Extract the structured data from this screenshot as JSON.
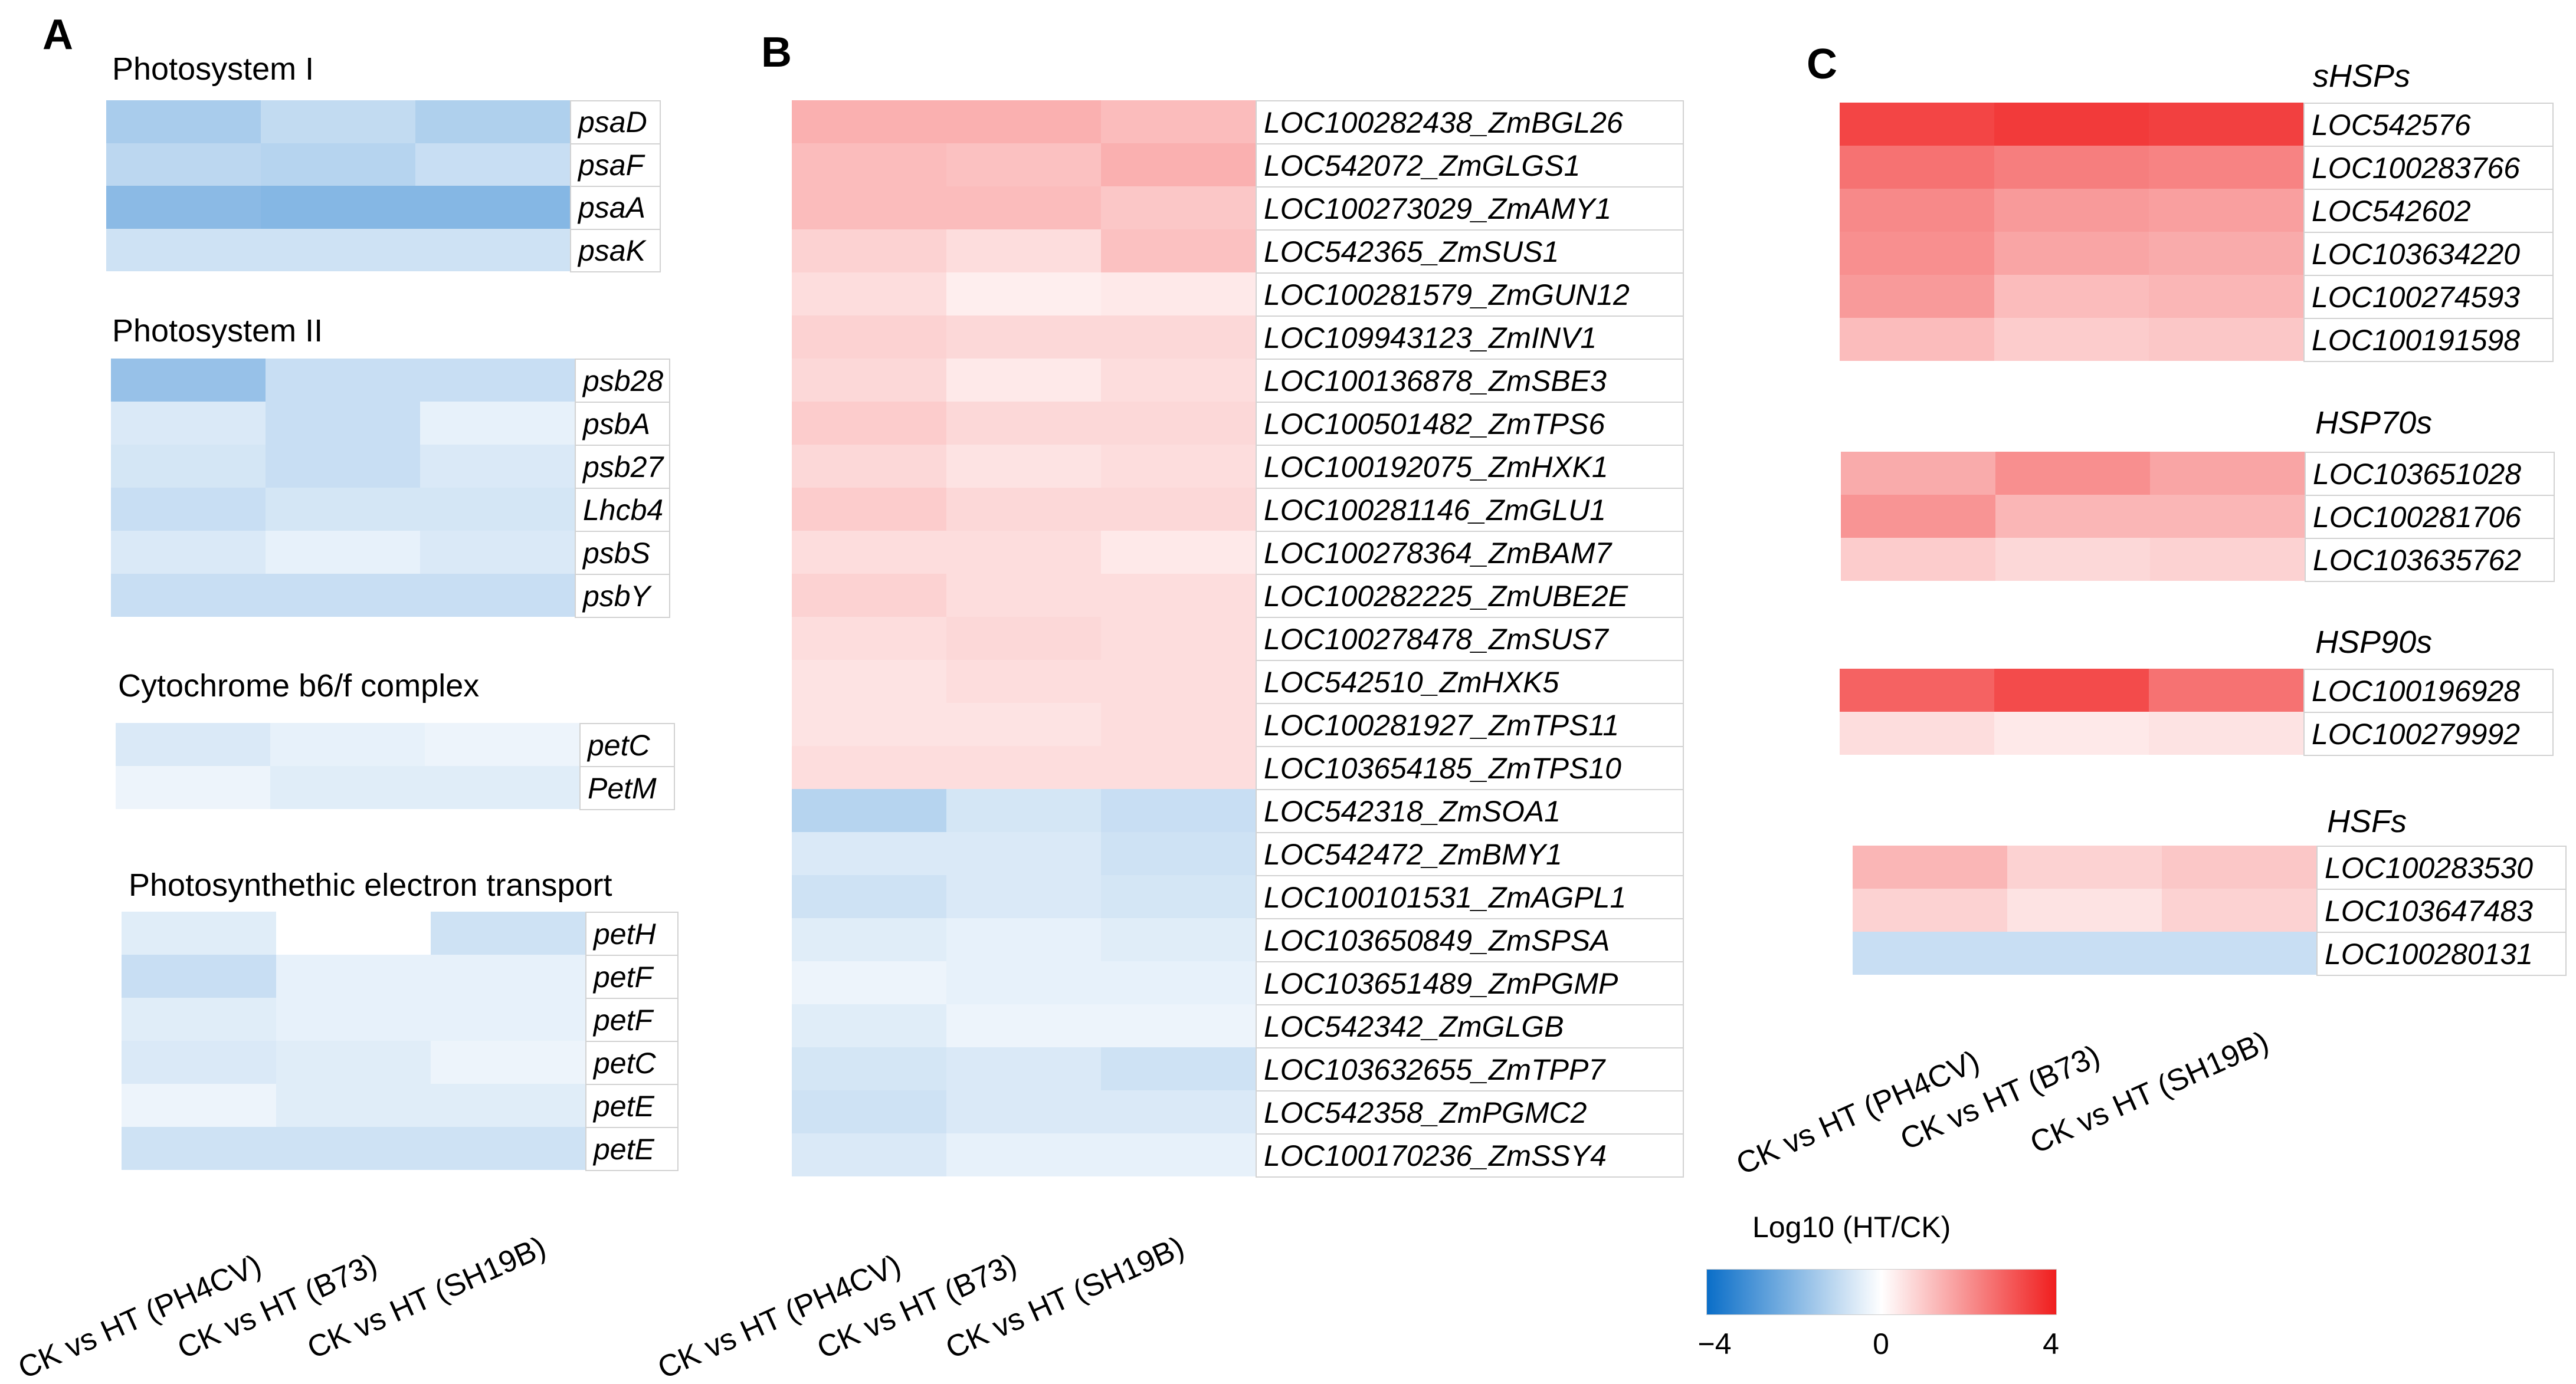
{
  "panel_labels": [
    "A",
    "B",
    "C"
  ],
  "chart_data": [
    {
      "type": "heatmap",
      "panel": "A",
      "value_scale": "Log10 (HT/CK)",
      "columns": [
        "CK vs HT (PH4CV)",
        "CK vs HT (B73)",
        "CK vs HT (SH19B)"
      ],
      "groups": [
        {
          "title": "Photosystem I",
          "genes": [
            "psaD",
            "psaF",
            "psaA",
            "psaK"
          ],
          "values": [
            [
              -1.4,
              -1.0,
              -1.3
            ],
            [
              -1.1,
              -1.2,
              -0.9
            ],
            [
              -1.9,
              -2.0,
              -2.0
            ],
            [
              -0.8,
              -0.8,
              -0.8
            ]
          ]
        },
        {
          "title": "Photosystem II",
          "genes": [
            "psb28",
            "psbA",
            "psb27",
            "Lhcb4",
            "psbS",
            "psbY"
          ],
          "values": [
            [
              -1.7,
              -0.9,
              -0.9
            ],
            [
              -0.6,
              -0.9,
              -0.4
            ],
            [
              -0.7,
              -0.9,
              -0.6
            ],
            [
              -0.9,
              -0.7,
              -0.7
            ],
            [
              -0.6,
              -0.4,
              -0.6
            ],
            [
              -0.9,
              -0.9,
              -0.9
            ]
          ]
        },
        {
          "title": "Cytochrome b6/f complex",
          "genes": [
            "petC",
            "PetM"
          ],
          "values": [
            [
              -0.6,
              -0.4,
              -0.3
            ],
            [
              -0.3,
              -0.5,
              -0.5
            ]
          ]
        },
        {
          "title": "Photosynthethic electron transport",
          "genes": [
            "petH",
            "petF",
            "petF",
            "petC",
            "petE",
            "petE"
          ],
          "values": [
            [
              -0.5,
              0.0,
              -0.8
            ],
            [
              -0.9,
              -0.4,
              -0.4
            ],
            [
              -0.5,
              -0.4,
              -0.4
            ],
            [
              -0.6,
              -0.5,
              -0.3
            ],
            [
              -0.3,
              -0.5,
              -0.5
            ],
            [
              -0.8,
              -0.8,
              -0.8
            ]
          ]
        }
      ]
    },
    {
      "type": "heatmap",
      "panel": "B",
      "value_scale": "Log10 (HT/CK)",
      "columns": [
        "CK vs HT (PH4CV)",
        "CK vs HT (B73)",
        "CK vs HT (SH19B)"
      ],
      "groups": [
        {
          "title": "",
          "genes": [
            "LOC100282438_ZmBGL26",
            "LOC542072_ZmGLGS1",
            "LOC100273029_ZmAMY1",
            "LOC542365_ZmSUS1",
            "LOC100281579_ZmGUN12",
            "LOC109943123_ZmINV1",
            "LOC100136878_ZmSBE3",
            "LOC100501482_ZmTPS6",
            "LOC100192075_ZmHXK1",
            "LOC100281146_ZmGLU1",
            "LOC100278364_ZmBAM7",
            "LOC100282225_ZmUBE2E",
            "LOC100278478_ZmSUS7",
            "LOC542510_ZmHXK5",
            "LOC100281927_ZmTPS11",
            "LOC103654185_ZmTPS10",
            "LOC542318_ZmSOA1",
            "LOC542472_ZmBMY1",
            "LOC100101531_ZmAGPL1",
            "LOC103650849_ZmSPSA",
            "LOC103651489_ZmPGMP",
            "LOC542342_ZmGLGB",
            "LOC103632655_ZmTPP7",
            "LOC542358_ZmPGMC2",
            "LOC100170236_ZmSSY4"
          ],
          "values": [
            [
              1.4,
              1.4,
              1.2
            ],
            [
              1.2,
              1.1,
              1.4
            ],
            [
              1.2,
              1.2,
              1.0
            ],
            [
              0.8,
              0.6,
              1.1
            ],
            [
              0.6,
              0.3,
              0.4
            ],
            [
              0.8,
              0.7,
              0.7
            ],
            [
              0.7,
              0.4,
              0.6
            ],
            [
              0.9,
              0.7,
              0.7
            ],
            [
              0.7,
              0.5,
              0.6
            ],
            [
              0.9,
              0.7,
              0.7
            ],
            [
              0.6,
              0.6,
              0.4
            ],
            [
              0.8,
              0.6,
              0.6
            ],
            [
              0.6,
              0.7,
              0.6
            ],
            [
              0.5,
              0.6,
              0.6
            ],
            [
              0.5,
              0.5,
              0.6
            ],
            [
              0.6,
              0.6,
              0.6
            ],
            [
              -1.2,
              -0.7,
              -0.9
            ],
            [
              -0.6,
              -0.6,
              -0.8
            ],
            [
              -0.8,
              -0.6,
              -0.7
            ],
            [
              -0.5,
              -0.4,
              -0.5
            ],
            [
              -0.3,
              -0.4,
              -0.4
            ],
            [
              -0.5,
              -0.3,
              -0.3
            ],
            [
              -0.7,
              -0.6,
              -0.8
            ],
            [
              -0.8,
              -0.6,
              -0.6
            ],
            [
              -0.6,
              -0.4,
              -0.4
            ]
          ]
        }
      ]
    },
    {
      "type": "heatmap",
      "panel": "C",
      "value_scale": "Log10 (HT/CK)",
      "columns": [
        "CK vs HT (PH4CV)",
        "CK vs HT (B73)",
        "CK vs HT (SH19B)"
      ],
      "groups": [
        {
          "title": "sHSPs",
          "genes": [
            "LOC542576",
            "LOC100283766",
            "LOC542602",
            "LOC103634220",
            "LOC100274593",
            "LOC100191598"
          ],
          "values": [
            [
              3.3,
              3.5,
              3.4
            ],
            [
              2.5,
              2.3,
              2.2
            ],
            [
              2.1,
              1.8,
              1.7
            ],
            [
              2.0,
              1.6,
              1.5
            ],
            [
              1.8,
              1.2,
              1.3
            ],
            [
              1.2,
              0.9,
              1.0
            ]
          ]
        },
        {
          "title": "HSP70s",
          "genes": [
            "LOC103651028",
            "LOC100281706",
            "LOC103635762"
          ],
          "values": [
            [
              1.5,
              2.0,
              1.6
            ],
            [
              1.9,
              1.3,
              1.3
            ],
            [
              0.9,
              0.7,
              0.8
            ]
          ]
        },
        {
          "title": "HSP90s",
          "genes": [
            "LOC100196928",
            "LOC100279992"
          ],
          "values": [
            [
              2.8,
              3.2,
              2.5
            ],
            [
              0.6,
              0.4,
              0.5
            ]
          ]
        },
        {
          "title": "HSFs",
          "genes": [
            "LOC100283530",
            "LOC103647483",
            "LOC100280131"
          ],
          "values": [
            [
              1.3,
              0.8,
              1.0
            ],
            [
              0.8,
              0.5,
              0.8
            ],
            [
              -0.9,
              -0.9,
              -0.9
            ]
          ]
        }
      ]
    }
  ],
  "legend": {
    "title": "Log10 (HT/CK)",
    "min": -4,
    "mid": 0,
    "max": 4,
    "tick_labels": [
      "−4",
      "0",
      "4"
    ],
    "colors": {
      "neg": "#0a6ec8",
      "mid": "#ffffff",
      "pos": "#f01e1e"
    }
  }
}
